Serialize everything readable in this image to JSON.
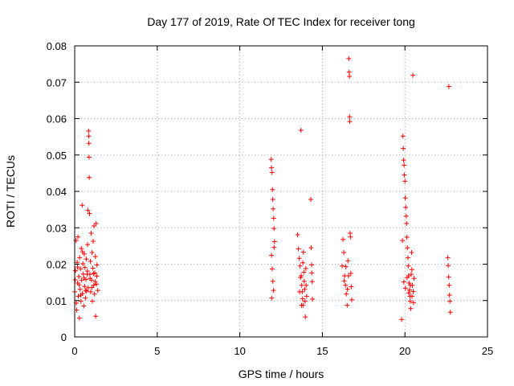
{
  "chart_data": {
    "type": "scatter",
    "title": "Day 177 of 2019, Rate Of TEC Index for receiver tong",
    "xlabel": "GPS time / hours",
    "ylabel": "ROTI / TECUs",
    "xlim": [
      0,
      25
    ],
    "ylim": [
      0,
      0.08
    ],
    "xticks": [
      0,
      5,
      10,
      15,
      20,
      25
    ],
    "xtick_labels": [
      "0",
      "5",
      "10",
      "15",
      "20",
      "25"
    ],
    "yticks": [
      0,
      0.01,
      0.02,
      0.03,
      0.04,
      0.05,
      0.06,
      0.07,
      0.08
    ],
    "ytick_labels": [
      "0",
      "0.01",
      "0.02",
      "0.03",
      "0.04",
      "0.05",
      "0.06",
      "0.07",
      "0.08"
    ],
    "grid": true,
    "marker": "+",
    "color": "#ff0000",
    "series": [
      {
        "name": "ROTI",
        "points": [
          [
            0.0,
            0.0124
          ],
          [
            0.05,
            0.0182
          ],
          [
            0.08,
            0.0265
          ],
          [
            0.1,
            0.0093
          ],
          [
            0.12,
            0.0074
          ],
          [
            0.15,
            0.0205
          ],
          [
            0.18,
            0.0148
          ],
          [
            0.2,
            0.0275
          ],
          [
            0.22,
            0.0112
          ],
          [
            0.25,
            0.0166
          ],
          [
            0.28,
            0.0052
          ],
          [
            0.3,
            0.0218
          ],
          [
            0.33,
            0.0131
          ],
          [
            0.35,
            0.0187
          ],
          [
            0.38,
            0.0098
          ],
          [
            0.4,
            0.0243
          ],
          [
            0.42,
            0.0156
          ],
          [
            0.45,
            0.0362
          ],
          [
            0.47,
            0.0119
          ],
          [
            0.5,
            0.0201
          ],
          [
            0.52,
            0.0173
          ],
          [
            0.55,
            0.0085
          ],
          [
            0.58,
            0.0228
          ],
          [
            0.6,
            0.0139
          ],
          [
            0.62,
            0.0191
          ],
          [
            0.65,
            0.0107
          ],
          [
            0.68,
            0.0158
          ],
          [
            0.7,
            0.0214
          ],
          [
            0.72,
            0.0126
          ],
          [
            0.75,
            0.0172
          ],
          [
            0.78,
            0.0254
          ],
          [
            0.8,
            0.0348
          ],
          [
            0.82,
            0.0135
          ],
          [
            0.84,
            0.0566
          ],
          [
            0.85,
            0.0552
          ],
          [
            0.86,
            0.0532
          ],
          [
            0.87,
            0.0494
          ],
          [
            0.88,
            0.0438
          ],
          [
            0.9,
            0.0339
          ],
          [
            0.92,
            0.0172
          ],
          [
            0.95,
            0.0208
          ],
          [
            0.97,
            0.0124
          ],
          [
            1.0,
            0.0285
          ],
          [
            1.02,
            0.0156
          ],
          [
            1.05,
            0.0232
          ],
          [
            1.07,
            0.0098
          ],
          [
            1.1,
            0.0189
          ],
          [
            1.12,
            0.0263
          ],
          [
            1.15,
            0.0142
          ],
          [
            1.17,
            0.0305
          ],
          [
            1.2,
            0.0118
          ],
          [
            1.22,
            0.0176
          ],
          [
            1.25,
            0.0221
          ],
          [
            1.27,
            0.0057
          ],
          [
            1.3,
            0.0312
          ],
          [
            1.32,
            0.0145
          ],
          [
            1.35,
            0.0198
          ],
          [
            1.4,
            0.0128
          ],
          [
            0.03,
            0.0157
          ],
          [
            0.17,
            0.0192
          ],
          [
            0.27,
            0.0143
          ],
          [
            0.37,
            0.0115
          ],
          [
            0.48,
            0.0234
          ],
          [
            0.57,
            0.0162
          ],
          [
            0.67,
            0.0128
          ],
          [
            0.77,
            0.0181
          ],
          [
            0.93,
            0.0161
          ],
          [
            1.04,
            0.0136
          ],
          [
            1.14,
            0.0174
          ],
          [
            1.24,
            0.0152
          ],
          [
            1.34,
            0.0167
          ],
          [
            11.9,
            0.0488
          ],
          [
            11.92,
            0.0465
          ],
          [
            11.95,
            0.0452
          ],
          [
            11.98,
            0.0405
          ],
          [
            12.0,
            0.0378
          ],
          [
            12.02,
            0.0352
          ],
          [
            12.05,
            0.0326
          ],
          [
            12.07,
            0.0298
          ],
          [
            12.1,
            0.0262
          ],
          [
            11.92,
            0.0224
          ],
          [
            11.96,
            0.0187
          ],
          [
            12.0,
            0.0153
          ],
          [
            12.04,
            0.0128
          ],
          [
            11.93,
            0.0107
          ],
          [
            12.08,
            0.0246
          ],
          [
            13.5,
            0.0281
          ],
          [
            13.55,
            0.0242
          ],
          [
            13.6,
            0.0216
          ],
          [
            13.65,
            0.0195
          ],
          [
            13.7,
            0.0568
          ],
          [
            13.72,
            0.0168
          ],
          [
            13.75,
            0.0142
          ],
          [
            13.78,
            0.0124
          ],
          [
            13.8,
            0.0105
          ],
          [
            13.83,
            0.0087
          ],
          [
            13.85,
            0.0233
          ],
          [
            13.88,
            0.0178
          ],
          [
            13.9,
            0.0153
          ],
          [
            13.93,
            0.0131
          ],
          [
            13.95,
            0.0098
          ],
          [
            13.97,
            0.0055
          ],
          [
            14.0,
            0.0188
          ],
          [
            14.02,
            0.0142
          ],
          [
            14.05,
            0.0112
          ],
          [
            13.62,
            0.0124
          ],
          [
            13.68,
            0.0163
          ],
          [
            13.74,
            0.0087
          ],
          [
            13.82,
            0.0204
          ],
          [
            14.3,
            0.0378
          ],
          [
            14.32,
            0.0245
          ],
          [
            14.35,
            0.0198
          ],
          [
            14.38,
            0.0152
          ],
          [
            14.4,
            0.0104
          ],
          [
            14.36,
            0.0176
          ],
          [
            16.2,
            0.0195
          ],
          [
            16.25,
            0.0268
          ],
          [
            16.3,
            0.0232
          ],
          [
            16.35,
            0.0168
          ],
          [
            16.4,
            0.0142
          ],
          [
            16.45,
            0.0118
          ],
          [
            16.5,
            0.0087
          ],
          [
            16.55,
            0.0209
          ],
          [
            16.6,
            0.0765
          ],
          [
            16.62,
            0.0728
          ],
          [
            16.64,
            0.0716
          ],
          [
            16.65,
            0.0605
          ],
          [
            16.66,
            0.0592
          ],
          [
            16.68,
            0.0285
          ],
          [
            16.7,
            0.0275
          ],
          [
            16.72,
            0.0175
          ],
          [
            16.75,
            0.0138
          ],
          [
            16.78,
            0.0102
          ],
          [
            16.32,
            0.0154
          ],
          [
            16.42,
            0.0193
          ],
          [
            16.52,
            0.0131
          ],
          [
            16.58,
            0.0168
          ],
          [
            19.8,
            0.0048
          ],
          [
            19.85,
            0.0265
          ],
          [
            19.88,
            0.0552
          ],
          [
            19.9,
            0.0518
          ],
          [
            19.92,
            0.0486
          ],
          [
            19.95,
            0.0472
          ],
          [
            19.97,
            0.0445
          ],
          [
            20.0,
            0.0428
          ],
          [
            20.02,
            0.0382
          ],
          [
            20.05,
            0.0356
          ],
          [
            20.08,
            0.0332
          ],
          [
            20.1,
            0.0312
          ],
          [
            20.12,
            0.0274
          ],
          [
            20.15,
            0.0245
          ],
          [
            20.18,
            0.0218
          ],
          [
            20.2,
            0.0195
          ],
          [
            20.22,
            0.0168
          ],
          [
            20.25,
            0.0148
          ],
          [
            20.28,
            0.0129
          ],
          [
            20.3,
            0.0112
          ],
          [
            20.32,
            0.0098
          ],
          [
            20.35,
            0.0078
          ],
          [
            20.38,
            0.0172
          ],
          [
            20.4,
            0.0232
          ],
          [
            20.42,
            0.0185
          ],
          [
            20.45,
            0.0142
          ],
          [
            20.48,
            0.0719
          ],
          [
            20.5,
            0.0125
          ],
          [
            20.52,
            0.0094
          ],
          [
            20.55,
            0.0161
          ],
          [
            19.93,
            0.0151
          ],
          [
            20.03,
            0.0134
          ],
          [
            20.13,
            0.0163
          ],
          [
            20.23,
            0.0121
          ],
          [
            20.33,
            0.0142
          ],
          [
            20.43,
            0.0112
          ],
          [
            22.6,
            0.0218
          ],
          [
            22.62,
            0.0196
          ],
          [
            22.65,
            0.0165
          ],
          [
            22.68,
            0.0142
          ],
          [
            22.7,
            0.0115
          ],
          [
            22.72,
            0.0098
          ],
          [
            22.75,
            0.0068
          ],
          [
            22.66,
            0.0688
          ]
        ]
      }
    ]
  }
}
